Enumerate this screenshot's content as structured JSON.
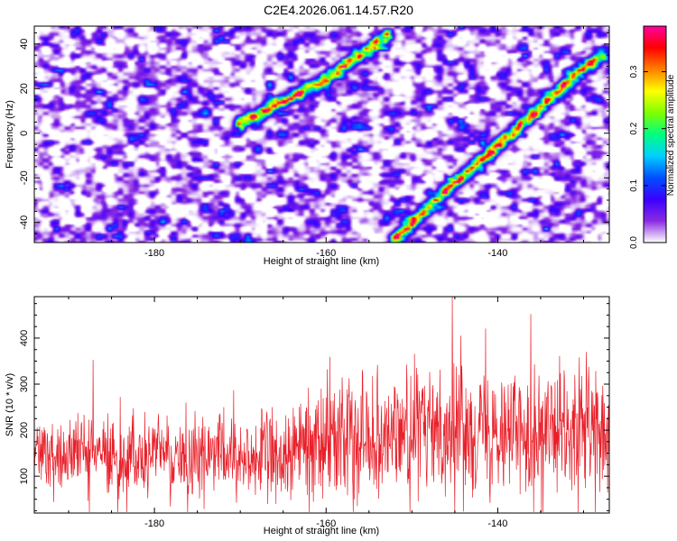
{
  "title": "C2E4.2026.061.14.57.R20",
  "chart_data": [
    {
      "type": "heatmap",
      "name": "spectrogram",
      "xlabel": "Height of straight line (km)",
      "ylabel": "Frequency (Hz)",
      "xlim": [
        -194,
        -127
      ],
      "ylim": [
        -49,
        48
      ],
      "xticks": [
        -180,
        -160,
        -140
      ],
      "yticks": [
        -40,
        -20,
        0,
        20,
        40
      ],
      "colorbar": {
        "label": "Normalized spectral amplitude",
        "range": [
          0.0,
          0.38
        ],
        "ticks": [
          0.0,
          0.1,
          0.2,
          0.3
        ],
        "colors": [
          "#ffffff",
          "#8a2be2",
          "#3a00ff",
          "#0050ff",
          "#00d0ff",
          "#00ff80",
          "#80ff00",
          "#ffff00",
          "#ff8000",
          "#ff0000",
          "#ff00a0"
        ]
      },
      "ridges": [
        {
          "name": "upper-ridge",
          "points": [
            [
              -170,
              5
            ],
            [
              -160,
              25
            ],
            [
              -153,
              44
            ]
          ]
        },
        {
          "name": "lower-ridge",
          "points": [
            [
              -152,
              -47
            ],
            [
              -146,
              -25
            ],
            [
              -140,
              -5
            ],
            [
              -130,
              30
            ],
            [
              -128,
              35
            ]
          ]
        }
      ]
    },
    {
      "type": "line",
      "name": "snr",
      "xlabel": "Height of straight line (km)",
      "ylabel": "SNR (10 * v/v)",
      "xlim": [
        -194,
        -127
      ],
      "ylim": [
        20,
        490
      ],
      "xticks": [
        -180,
        -160,
        -140
      ],
      "yticks": [
        100,
        200,
        300,
        400
      ],
      "line_color": "#e8202a",
      "series": [
        {
          "name": "SNR",
          "trend": [
            [
              -194,
              150
            ],
            [
              -165,
              140
            ],
            [
              -160,
              190
            ],
            [
              -140,
              210
            ],
            [
              -127,
              180
            ]
          ],
          "spread": [
            [
              -194,
              80
            ],
            [
              -165,
              85
            ],
            [
              -160,
              120
            ],
            [
              -127,
              130
            ]
          ]
        }
      ]
    }
  ]
}
